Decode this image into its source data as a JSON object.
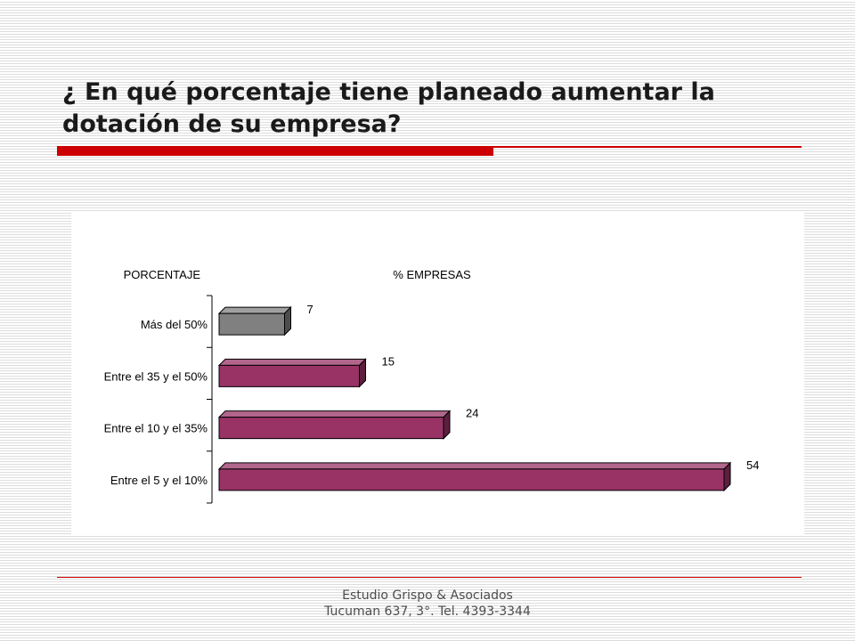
{
  "slide": {
    "title": "¿ En qué porcentaje tiene planeado aumentar la dotación de su empresa?"
  },
  "footer": {
    "line1": "Estudio Grispo & Asociados",
    "line2": "Tucuman 637, 3°. Tel. 4393-3344"
  },
  "colors": {
    "accent_rule": "#cc0000",
    "bar_gray": "#808080",
    "bar_maroon": "#993366"
  },
  "chart_data": {
    "type": "bar",
    "orientation": "horizontal",
    "style": "3d",
    "category_axis_title": "PORCENTAJE",
    "value_axis_title": "% EMPRESAS",
    "categories": [
      "Más del 50%",
      "Entre el 35 y el 50%",
      "Entre el 10 y el 35%",
      "Entre el 5 y el 10%"
    ],
    "values": [
      7,
      15,
      24,
      54
    ],
    "bar_colors": [
      "#808080",
      "#993366",
      "#993366",
      "#993366"
    ],
    "data_labels": true,
    "xlim": [
      0,
      54
    ],
    "grid": false,
    "legend": "none"
  }
}
